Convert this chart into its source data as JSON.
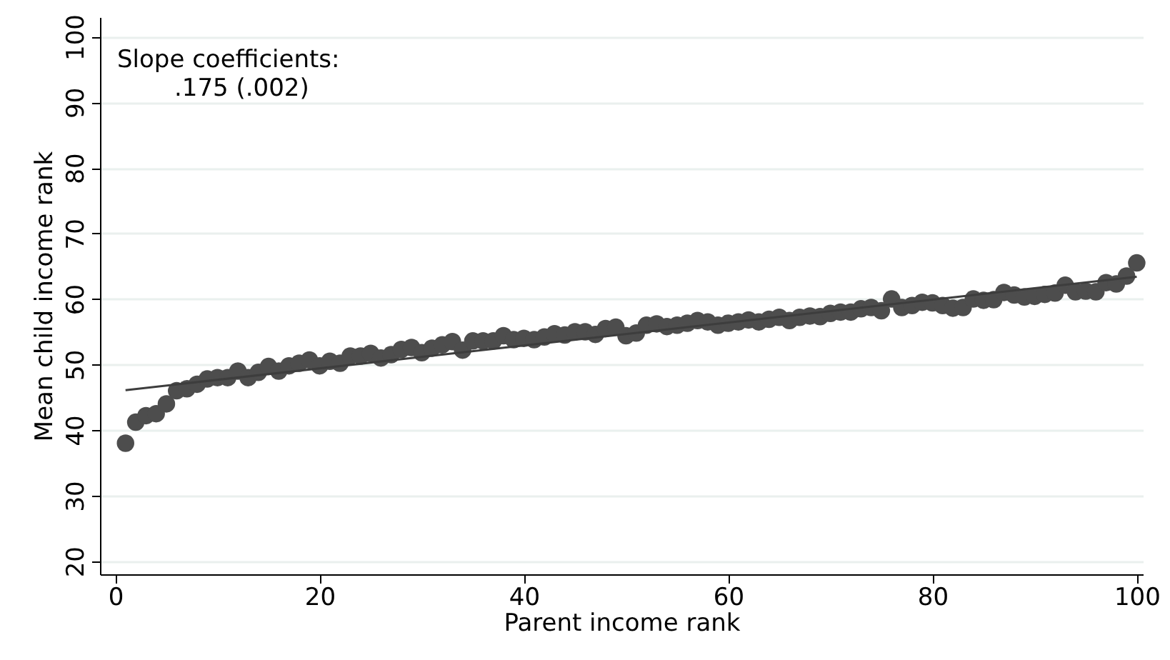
{
  "chart_data": {
    "type": "scatter",
    "xlabel": "Parent income rank",
    "ylabel": "Mean child income rank",
    "annotations": [
      "Slope coefficients:",
      ".175 (.002)"
    ],
    "x": [
      1,
      2,
      3,
      4,
      5,
      6,
      7,
      8,
      9,
      10,
      11,
      12,
      13,
      14,
      15,
      16,
      17,
      18,
      19,
      20,
      21,
      22,
      23,
      24,
      25,
      26,
      27,
      28,
      29,
      30,
      31,
      32,
      33,
      34,
      35,
      36,
      37,
      38,
      39,
      40,
      41,
      42,
      43,
      44,
      45,
      46,
      47,
      48,
      49,
      50,
      51,
      52,
      53,
      54,
      55,
      56,
      57,
      58,
      59,
      60,
      61,
      62,
      63,
      64,
      65,
      66,
      67,
      68,
      69,
      70,
      71,
      72,
      73,
      74,
      75,
      76,
      77,
      78,
      79,
      80,
      81,
      82,
      83,
      84,
      85,
      86,
      87,
      88,
      89,
      90,
      91,
      92,
      93,
      94,
      95,
      96,
      97,
      98,
      99,
      100
    ],
    "series": [
      {
        "color": "#4d4d4d",
        "marker": "circle",
        "values": [
          38,
          41.2,
          42.2,
          42.5,
          44,
          46,
          46.3,
          47,
          47.8,
          48,
          48,
          49,
          48,
          48.8,
          49.7,
          49,
          49.8,
          50.2,
          50.7,
          49.8,
          50.5,
          50.2,
          51.3,
          51.3,
          51.7,
          51,
          51.5,
          52.3,
          52.6,
          51.8,
          52.5,
          53,
          53.5,
          52.2,
          53.6,
          53.6,
          53.6,
          54.4,
          53.8,
          54,
          53.8,
          54.2,
          54.7,
          54.5,
          55,
          55,
          54.6,
          55.5,
          55.7,
          54.4,
          54.8,
          56,
          56.2,
          55.8,
          56,
          56.3,
          56.7,
          56.5,
          56,
          56.3,
          56.5,
          56.8,
          56.5,
          56.9,
          57.2,
          56.7,
          57.2,
          57.4,
          57.3,
          57.8,
          58,
          58,
          58.5,
          58.7,
          58.2,
          60,
          58.7,
          59,
          59.5,
          59.4,
          59,
          58.6,
          58.7,
          60,
          59.8,
          59.9,
          61,
          60.6,
          60.3,
          60.4,
          60.7,
          60.9,
          62.1,
          61.1,
          61.2,
          61.1,
          62.5,
          62.3,
          63.5,
          65.5
        ]
      },
      {
        "type": "line",
        "color": "#3d3d3d",
        "marker": "none",
        "line_style": "solid",
        "x": [
          1,
          100
        ],
        "values": [
          46.1,
          63.4
        ]
      }
    ],
    "xlim": [
      -1.5,
      100.6
    ],
    "xticks": [
      0,
      20,
      40,
      60,
      80,
      100
    ],
    "ylim": [
      18,
      103
    ],
    "yticks": [
      20,
      30,
      40,
      50,
      60,
      70,
      80,
      90,
      100
    ],
    "grid": "y"
  }
}
